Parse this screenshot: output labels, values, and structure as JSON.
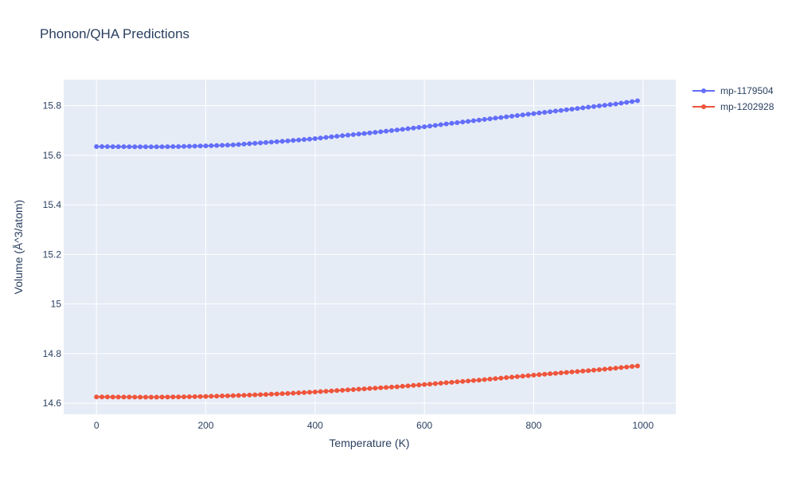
{
  "chart_data": {
    "type": "line",
    "title": "Phonon/QHA Predictions",
    "xlabel": "Temperature (K)",
    "ylabel": "Volume (Å^3/atom)",
    "xlim": [
      -60,
      1060
    ],
    "ylim": [
      14.555,
      15.905
    ],
    "x_ticks": [
      0,
      200,
      400,
      600,
      800,
      1000
    ],
    "x_tick_labels": [
      "0",
      "200",
      "400",
      "600",
      "800",
      "1000"
    ],
    "y_ticks": [
      14.6,
      14.8,
      15,
      15.2,
      15.4,
      15.6,
      15.8
    ],
    "y_tick_labels": [
      "14.6",
      "14.8",
      "15",
      "15.2",
      "15.4",
      "15.6",
      "15.8"
    ],
    "grid": true,
    "legend_position": "top-right",
    "x_range": {
      "start": 0,
      "end": 990,
      "step": 10
    },
    "series": [
      {
        "name": "mp-1179504",
        "color": "#636efa",
        "points": [
          [
            0,
            15.635
          ],
          [
            100,
            15.634
          ],
          [
            150,
            15.635
          ],
          [
            200,
            15.638
          ],
          [
            250,
            15.642
          ],
          [
            300,
            15.65
          ],
          [
            350,
            15.658
          ],
          [
            400,
            15.667
          ],
          [
            450,
            15.679
          ],
          [
            500,
            15.69
          ],
          [
            550,
            15.702
          ],
          [
            600,
            15.715
          ],
          [
            650,
            15.729
          ],
          [
            700,
            15.742
          ],
          [
            750,
            15.755
          ],
          [
            800,
            15.768
          ],
          [
            850,
            15.781
          ],
          [
            900,
            15.794
          ],
          [
            950,
            15.807
          ],
          [
            990,
            15.82
          ]
        ]
      },
      {
        "name": "mp-1202928",
        "color": "#ef553b",
        "points": [
          [
            0,
            14.625
          ],
          [
            100,
            14.624
          ],
          [
            150,
            14.625
          ],
          [
            200,
            14.627
          ],
          [
            250,
            14.63
          ],
          [
            300,
            14.634
          ],
          [
            350,
            14.639
          ],
          [
            400,
            14.645
          ],
          [
            450,
            14.652
          ],
          [
            500,
            14.659
          ],
          [
            550,
            14.666
          ],
          [
            600,
            14.675
          ],
          [
            650,
            14.684
          ],
          [
            700,
            14.693
          ],
          [
            750,
            14.703
          ],
          [
            800,
            14.713
          ],
          [
            850,
            14.722
          ],
          [
            900,
            14.731
          ],
          [
            950,
            14.741
          ],
          [
            990,
            14.75
          ]
        ]
      }
    ]
  }
}
